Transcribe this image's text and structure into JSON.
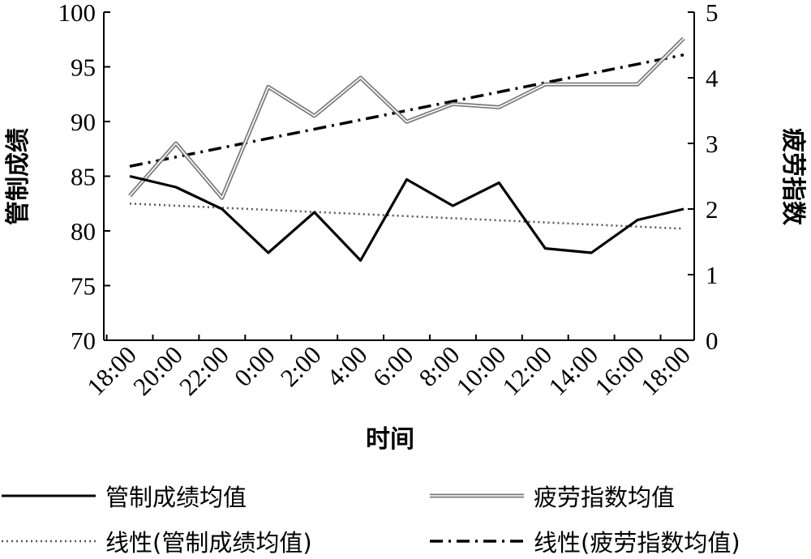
{
  "chart_data": {
    "type": "line",
    "xlabel": "时间",
    "ylabel_left": "管制成绩",
    "ylabel_right": "疲劳指数",
    "x": [
      "18:00",
      "20:00",
      "22:00",
      "0:00",
      "2:00",
      "4:00",
      "6:00",
      "8:00",
      "10:00",
      "12:00",
      "14:00",
      "16:00",
      "18:00"
    ],
    "ylim_left": [
      70,
      100
    ],
    "ylim_right": [
      0,
      5
    ],
    "yticks_left": [
      "70",
      "75",
      "80",
      "85",
      "90",
      "95",
      "100"
    ],
    "yticks_right": [
      "0",
      "1",
      "2",
      "3",
      "4",
      "5"
    ],
    "grid": false,
    "series": [
      {
        "name": "管制成绩均值",
        "axis": "left",
        "style": "solid-black",
        "points": [
          [
            0,
            85.0
          ],
          [
            1,
            84.0
          ],
          [
            2,
            82.0
          ],
          [
            3,
            78.0
          ],
          [
            4,
            81.7
          ],
          [
            5,
            77.3
          ],
          [
            6,
            84.7
          ],
          [
            7,
            82.3
          ],
          [
            8,
            84.4
          ],
          [
            9,
            78.4
          ],
          [
            10,
            78.0
          ],
          [
            11,
            81.0
          ],
          [
            12,
            82.0
          ]
        ]
      },
      {
        "name": "疲劳指数均值",
        "axis": "right",
        "style": "double-gray",
        "points": [
          [
            0,
            2.2
          ],
          [
            1,
            3.0
          ],
          [
            2,
            2.17
          ],
          [
            3,
            3.86
          ],
          [
            4,
            3.42
          ],
          [
            5,
            4.0
          ],
          [
            6,
            3.33
          ],
          [
            7,
            3.6
          ],
          [
            8,
            3.55
          ],
          [
            9,
            3.9
          ],
          [
            10,
            3.9
          ],
          [
            11,
            3.9
          ],
          [
            12,
            4.6
          ]
        ]
      },
      {
        "name": "线性(管制成绩均值)",
        "axis": "left",
        "style": "dotted",
        "points": [
          [
            0,
            82.5
          ],
          [
            12,
            80.2
          ]
        ]
      },
      {
        "name": "线性(疲劳指数均值)",
        "axis": "right",
        "style": "dash-dot",
        "points": [
          [
            0,
            2.65
          ],
          [
            12,
            4.35
          ]
        ]
      }
    ],
    "legend": {
      "placement": "bottom",
      "columns": 2
    }
  }
}
